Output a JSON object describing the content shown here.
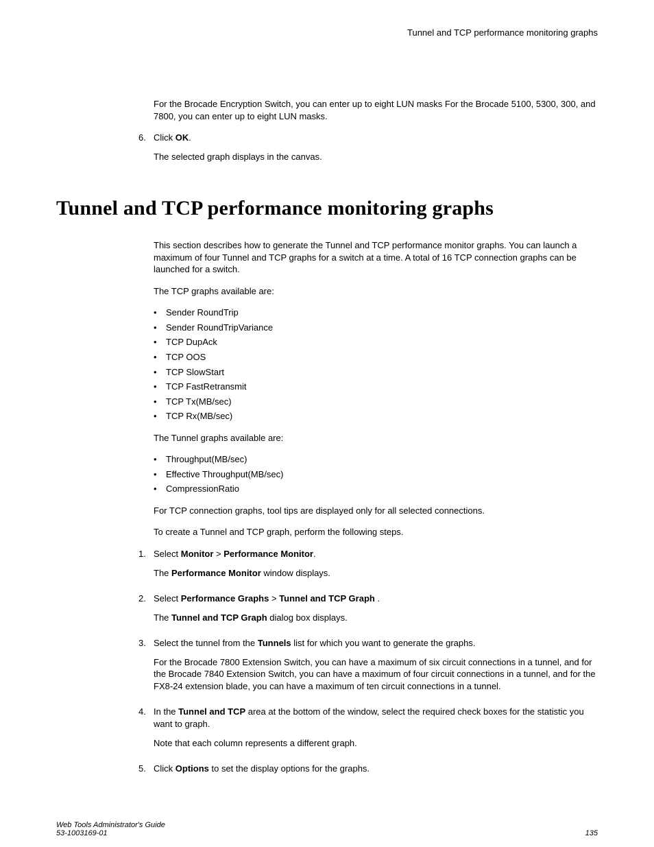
{
  "running_head": "Tunnel and TCP performance monitoring graphs",
  "top_block": {
    "note": "For the Brocade Encryption Switch, you can enter up to eight LUN masks For the Brocade 5100, 5300, 300, and 7800, you can enter up to eight LUN masks.",
    "step6_num": "6.",
    "step6_prefix": "Click ",
    "step6_bold": "OK",
    "step6_suffix": ".",
    "step6_sub": "The selected graph displays in the canvas."
  },
  "section_title": "Tunnel and TCP performance monitoring graphs",
  "intro": "This section describes how to generate the Tunnel and TCP performance monitor graphs. You can launch a maximum of four Tunnel and TCP graphs for a switch at a time. A total of 16 TCP connection graphs can be launched for a switch.",
  "tcp_lead": "The TCP graphs available are:",
  "tcp_list": [
    "Sender RoundTrip",
    "Sender RoundTripVariance",
    "TCP DupAck",
    "TCP OOS",
    "TCP SlowStart",
    "TCP FastRetransmit",
    "TCP Tx(MB/sec)",
    "TCP Rx(MB/sec)"
  ],
  "tunnel_lead": "The Tunnel graphs available are:",
  "tunnel_list": [
    "Throughput(MB/sec)",
    "Effective Throughput(MB/sec)",
    "CompressionRatio"
  ],
  "tooltip_note": "For TCP connection graphs, tool tips are displayed only for all selected connections.",
  "create_lead": "To create a Tunnel and TCP graph, perform the following steps.",
  "steps": {
    "s1": {
      "num": "1.",
      "pre": "Select ",
      "b1": "Monitor",
      "mid": "  > ",
      "b2": "Performance Monitor",
      "post": ".",
      "sub_pre": "The ",
      "sub_b": "Performance Monitor",
      "sub_post": " window displays."
    },
    "s2": {
      "num": "2.",
      "pre": "Select ",
      "b1": "Performance Graphs",
      "mid": "  > ",
      "b2": "Tunnel and TCP Graph",
      "post": " .",
      "sub_pre": "The ",
      "sub_b": "Tunnel and TCP Graph",
      "sub_post": " dialog box displays."
    },
    "s3": {
      "num": "3.",
      "pre": "Select the tunnel from the ",
      "b1": "Tunnels",
      "post": " list for which you want to generate the graphs.",
      "sub": "For the Brocade 7800 Extension Switch, you can have a maximum of six circuit connections in a tunnel, and for the Brocade 7840 Extension Switch, you can have a maximum of four circuit connections in a tunnel, and for the FX8-24 extension blade, you can have a maximum of ten circuit connections in a tunnel."
    },
    "s4": {
      "num": "4.",
      "pre": "In the ",
      "b1": "Tunnel and TCP",
      "post": " area at the bottom of the window, select the required check boxes for the statistic you want to graph.",
      "sub": "Note that each column represents a different graph."
    },
    "s5": {
      "num": "5.",
      "pre": "Click ",
      "b1": "Options",
      "post": " to set the display options for the graphs."
    }
  },
  "footer": {
    "line1": "Web Tools Administrator's Guide",
    "line2": "53-1003169-01",
    "page": "135"
  }
}
